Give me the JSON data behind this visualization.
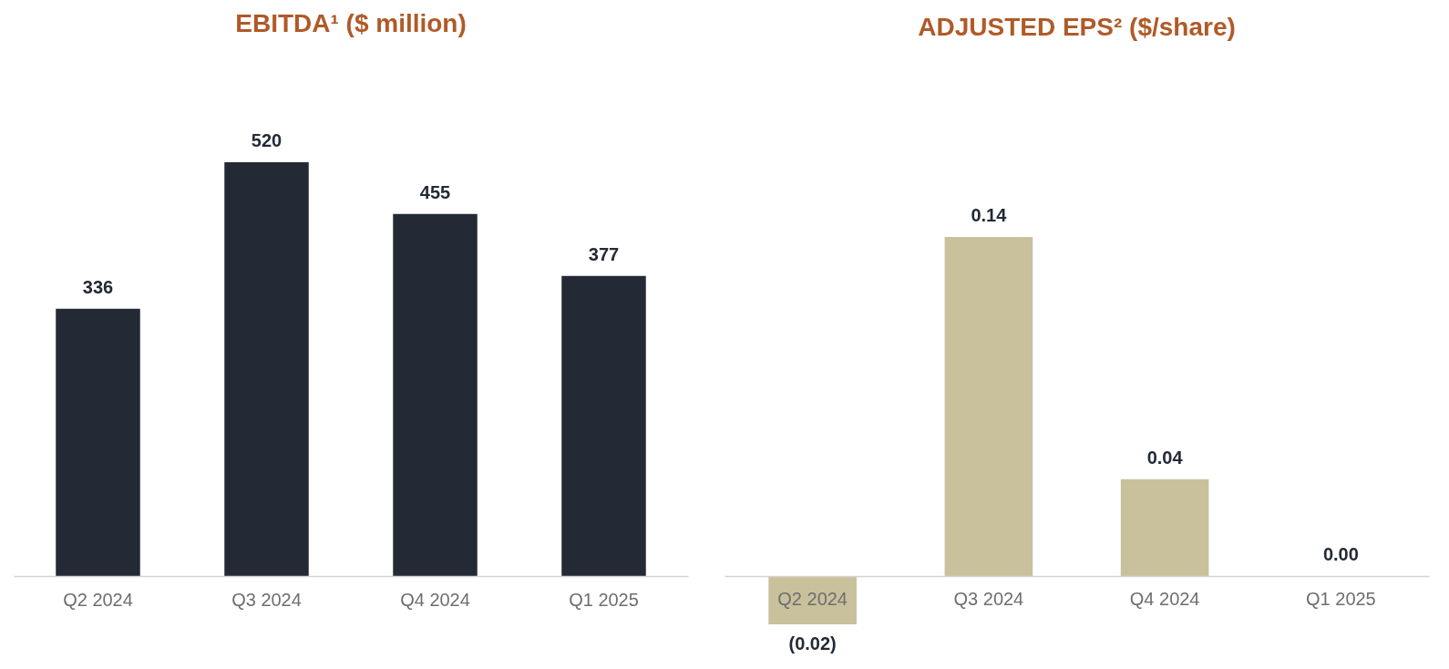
{
  "chart_data": [
    {
      "type": "bar",
      "title": "EBITDA¹ ($ million)",
      "categories": [
        "Q2 2024",
        "Q3 2024",
        "Q4 2024",
        "Q1 2025"
      ],
      "values": [
        336,
        520,
        455,
        377
      ],
      "color": "#232a35",
      "data_labels": true
    },
    {
      "type": "bar",
      "title": "ADJUSTED EPS² ($/share)",
      "categories": [
        "Q2 2024",
        "Q3 2024",
        "Q4 2024",
        "Q1 2025"
      ],
      "values": [
        -0.02,
        0.14,
        0.04,
        0.0
      ],
      "color": "#c8c19b",
      "value_labels": [
        "(0.02)",
        "0.14",
        "0.04",
        "0.00"
      ]
    }
  ]
}
